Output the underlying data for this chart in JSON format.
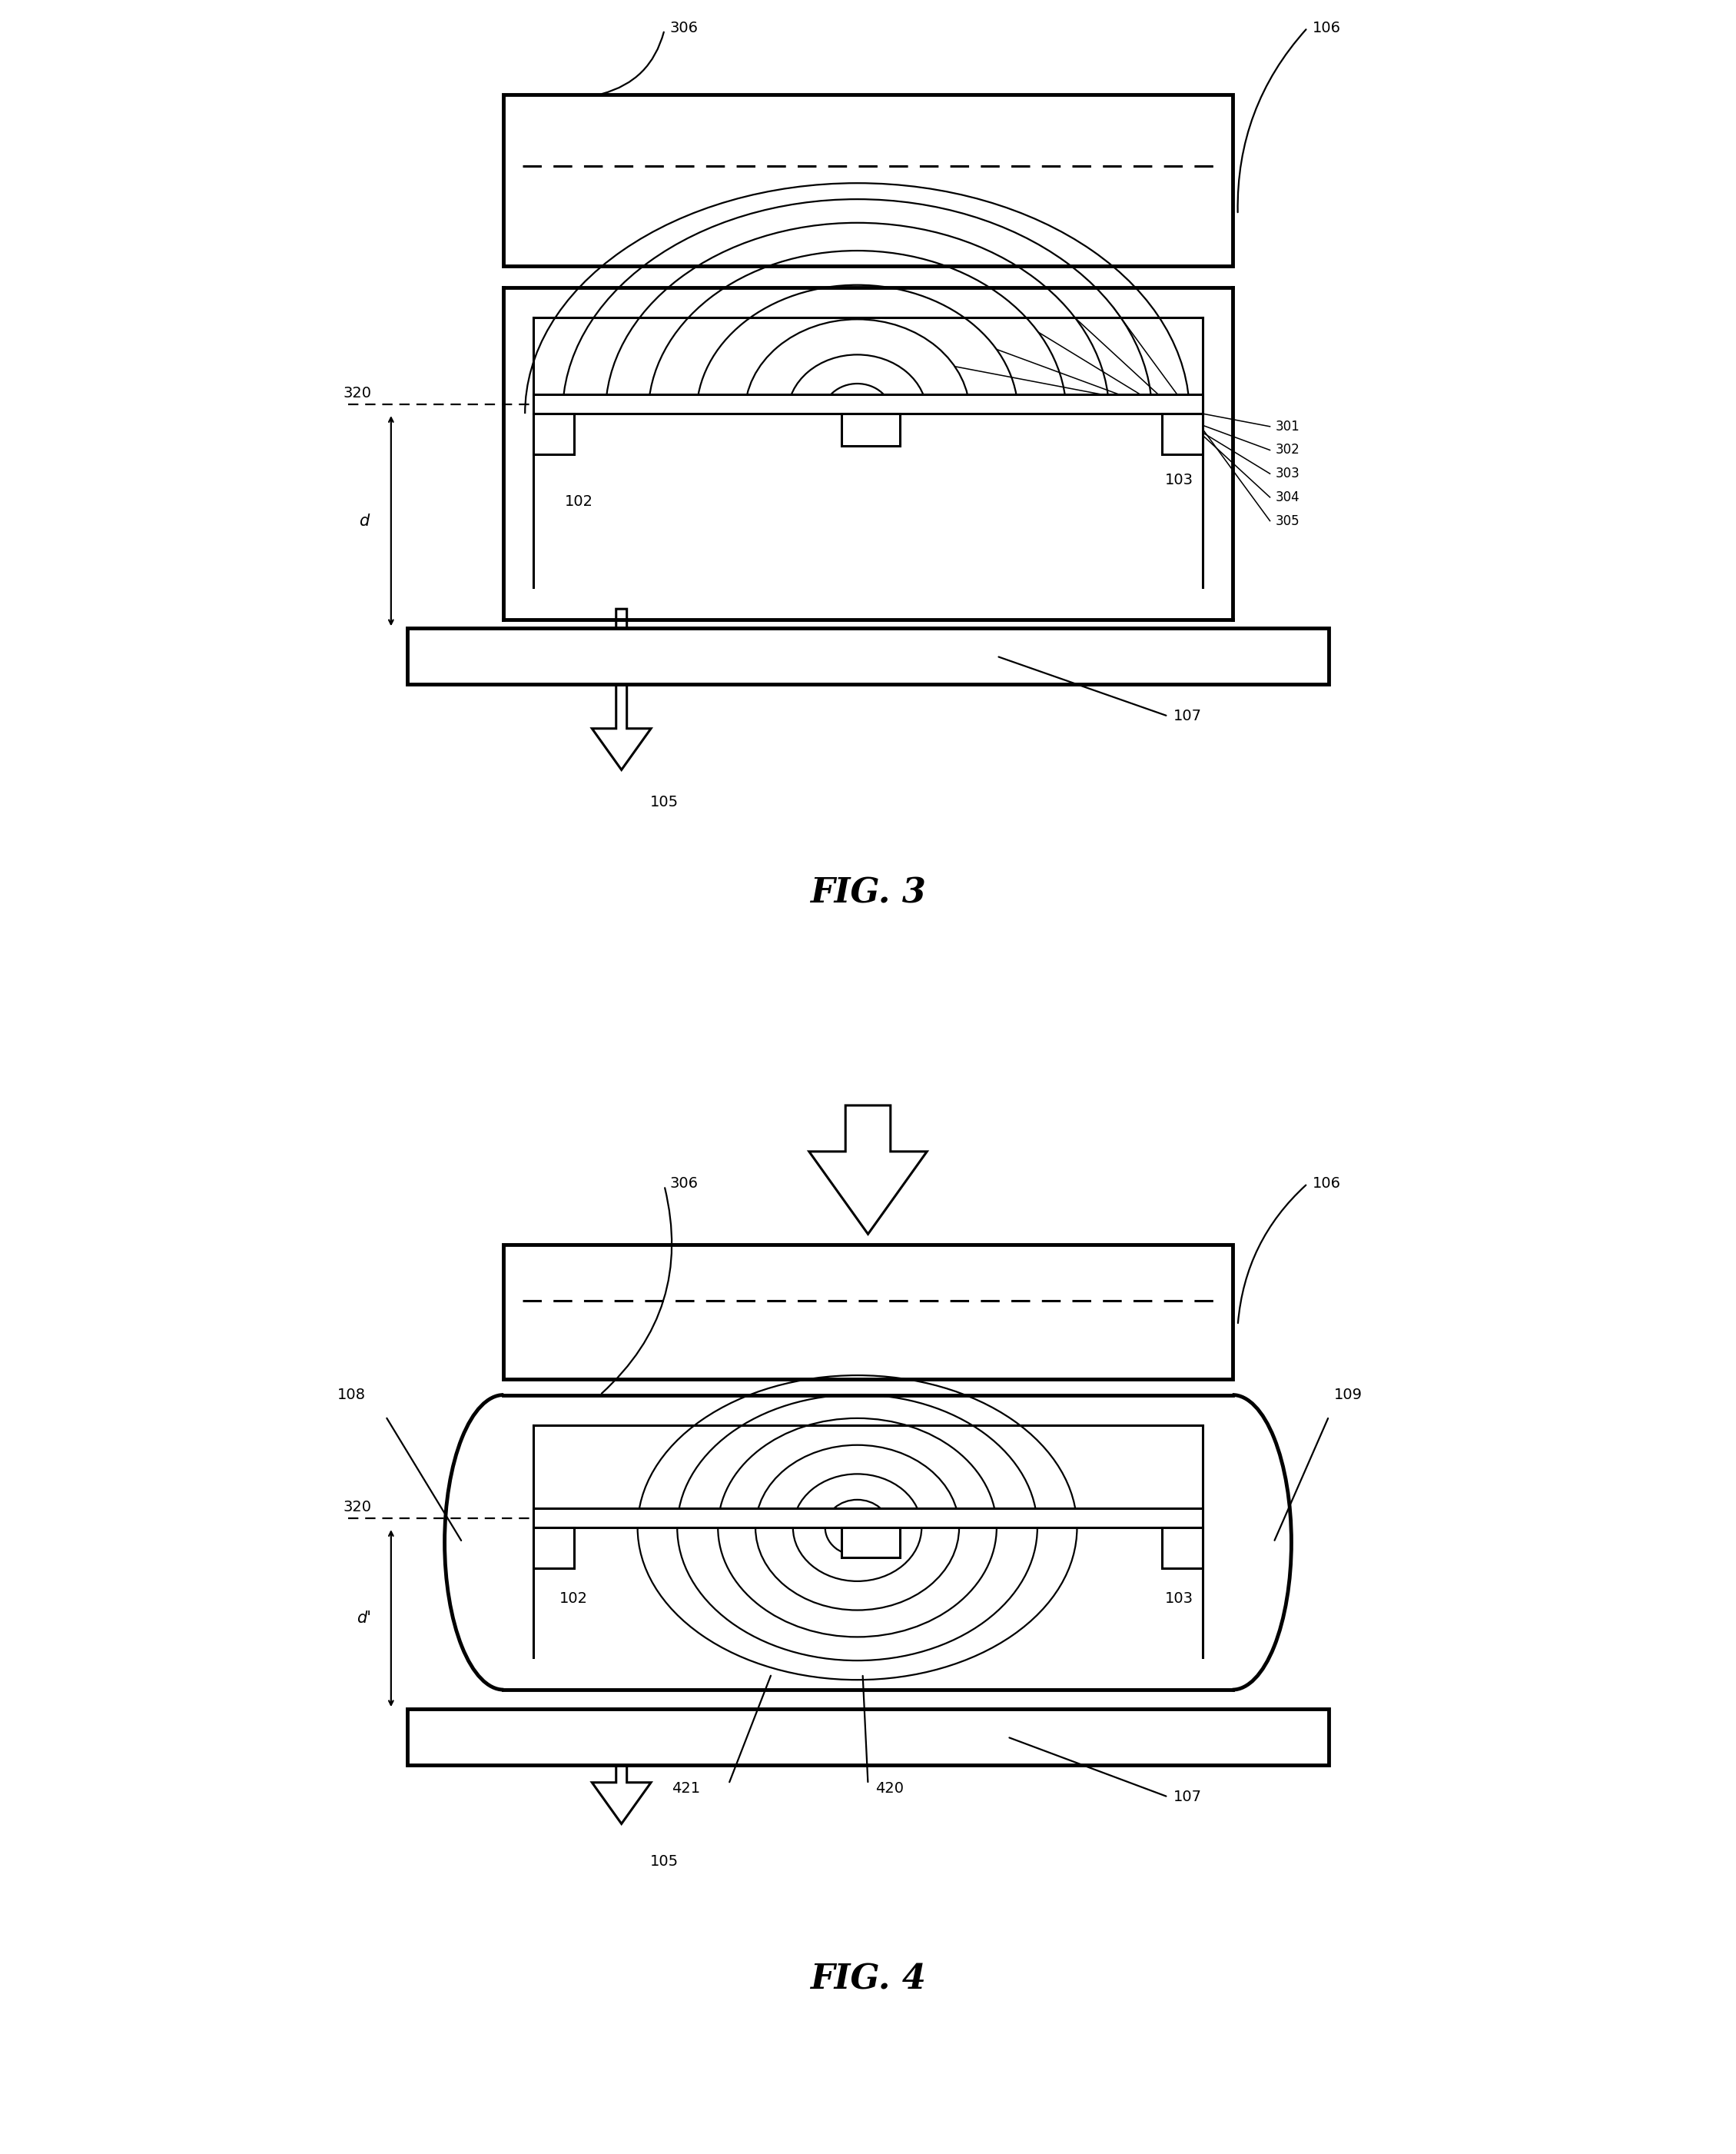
{
  "fig3_title": "FIG. 3",
  "fig4_title": "FIG. 4",
  "bg_color": "#ffffff",
  "lc": "#000000"
}
